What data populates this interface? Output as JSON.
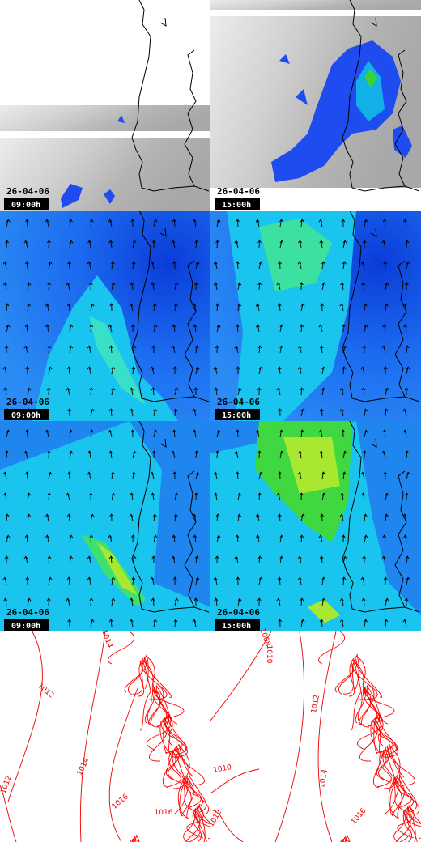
{
  "panels": [
    {
      "date": "26-04-06",
      "time": "09:00h"
    },
    {
      "date": "26-04-06",
      "time": "15:00h"
    },
    {
      "date": "26-04-06",
      "time": "09:00h"
    },
    {
      "date": "26-04-06",
      "time": "15:00h"
    },
    {
      "date": "26-04-06",
      "time": "09:00h"
    },
    {
      "date": "26-04-06",
      "time": "15:00h"
    }
  ],
  "isobar_labels": {
    "left": [
      "1014",
      "1012",
      "1014",
      "1016",
      "1012",
      "1016"
    ],
    "right": [
      "1008",
      "1010",
      "1012",
      "1010",
      "1014",
      "1016",
      "1012"
    ]
  }
}
